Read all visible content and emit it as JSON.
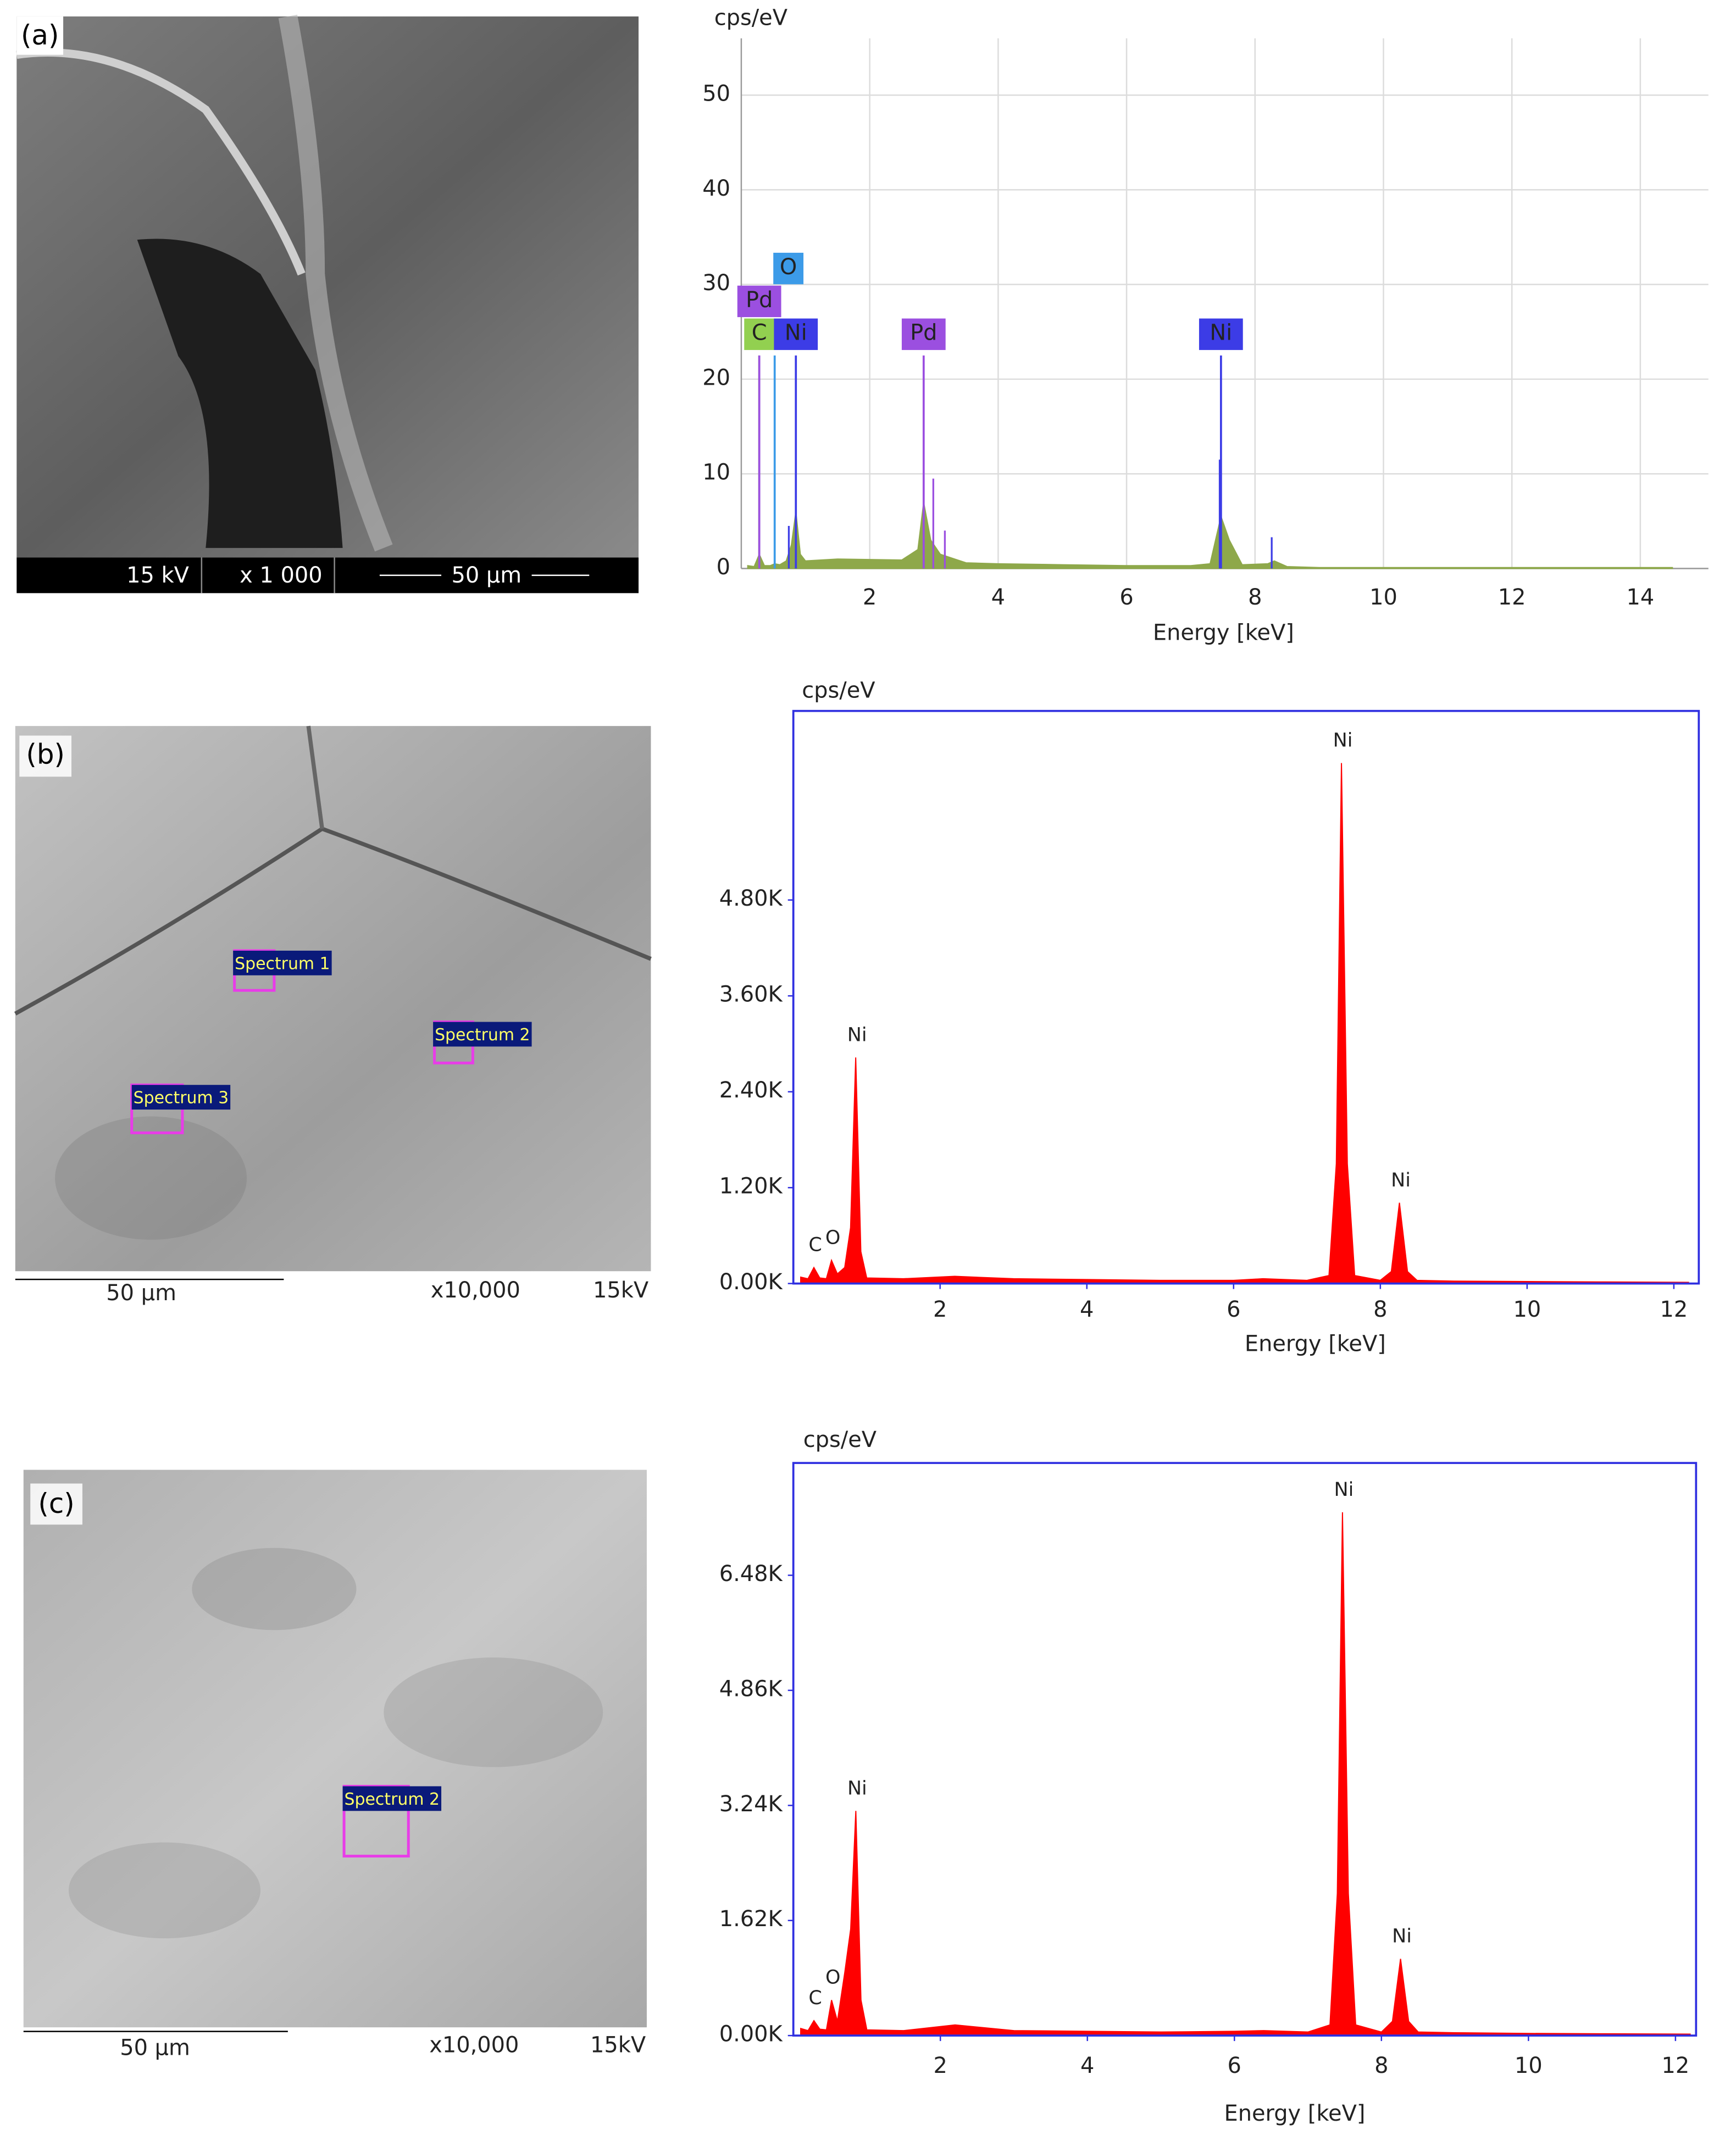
{
  "chart_data": [
    {
      "type": "area",
      "y_label": "cps/eV",
      "x_label": "Energy [keV]",
      "color": "#8ea84a",
      "grid": true,
      "frame_color": "#9a9a9a",
      "xlim": [
        0,
        15.06
      ],
      "xticks": [
        2,
        4,
        6,
        8,
        10,
        12,
        14
      ],
      "ylim": [
        0,
        56
      ],
      "yticks": [
        0,
        10,
        20,
        30,
        40,
        50
      ],
      "x": [
        0.1,
        0.2,
        0.28,
        0.36,
        0.45,
        0.52,
        0.6,
        0.7,
        0.78,
        0.85,
        0.92,
        1.0,
        1.5,
        2.5,
        2.75,
        2.84,
        2.95,
        3.1,
        3.5,
        4,
        5,
        6,
        7,
        7.3,
        7.47,
        7.6,
        7.8,
        8.2,
        8.3,
        8.5,
        9,
        10,
        12,
        14.5
      ],
      "values": [
        0.3,
        0.2,
        1.5,
        0.3,
        0.3,
        0.5,
        0.4,
        0.8,
        2.5,
        6,
        1.5,
        0.8,
        1,
        0.9,
        2,
        7,
        3,
        1.5,
        0.6,
        0.5,
        0.4,
        0.3,
        0.3,
        0.5,
        5.5,
        3,
        0.4,
        0.5,
        0.8,
        0.2,
        0.1,
        0.1,
        0.1,
        0.1
      ],
      "markers": [
        {
          "label": "C",
          "x": 0.28,
          "y": 22.5,
          "color": "#92d050"
        },
        {
          "label": "Pd",
          "x": 0.28,
          "y": 22.5,
          "color": "#9b4fe0"
        },
        {
          "label": "O",
          "x": 0.52,
          "y": 22.5,
          "color": "#3c9be8"
        },
        {
          "label": "Ni",
          "x": 0.85,
          "y": 22.5,
          "color": "#3c3ce6"
        },
        {
          "label": "Pd",
          "x": 2.84,
          "y": 22.5,
          "color": "#9b4fe0"
        },
        {
          "label": "Ni",
          "x": 7.47,
          "y": 22.5,
          "color": "#3c3ce6"
        }
      ],
      "lines": [
        {
          "x": 2.99,
          "y": 9.5,
          "color": "#9b4fe0"
        },
        {
          "x": 3.17,
          "y": 4,
          "color": "#9b4fe0"
        },
        {
          "x": 0.74,
          "y": 4.5,
          "color": "#3c3ce6"
        },
        {
          "x": 7.45,
          "y": 11.5,
          "color": "#3c3ce6"
        },
        {
          "x": 8.26,
          "y": 3.3,
          "color": "#3c3ce6"
        }
      ]
    },
    {
      "type": "area",
      "y_label": "cps/eV",
      "x_label": "Energy [keV]",
      "color": "#ff0000",
      "grid": false,
      "frame_color": "#2f2fe0",
      "xlim": [
        0,
        12.34
      ],
      "xticks": [
        2,
        4,
        6,
        8,
        10,
        12
      ],
      "ylim": [
        0,
        7166
      ],
      "yticks": [
        {
          "value": 0,
          "label": "0.00K"
        },
        {
          "value": 1200,
          "label": "1.20K"
        },
        {
          "value": 2400,
          "label": "2.40K"
        },
        {
          "value": 3600,
          "label": "3.60K"
        },
        {
          "value": 4800,
          "label": "4.80K"
        }
      ],
      "x": [
        0.1,
        0.2,
        0.28,
        0.36,
        0.45,
        0.52,
        0.6,
        0.7,
        0.78,
        0.85,
        0.92,
        1.0,
        1.5,
        2.2,
        3,
        4,
        5,
        6,
        6.4,
        7,
        7.3,
        7.4,
        7.47,
        7.55,
        7.65,
        8.0,
        8.15,
        8.26,
        8.37,
        8.5,
        9,
        10,
        11,
        12.2
      ],
      "values": [
        80,
        60,
        200,
        70,
        60,
        290,
        120,
        200,
        700,
        2829,
        400,
        70,
        60,
        90,
        60,
        50,
        40,
        40,
        60,
        40,
        100,
        1500,
        6514,
        1500,
        100,
        40,
        150,
        1011,
        150,
        40,
        30,
        25,
        20,
        15
      ],
      "peak_labels": [
        {
          "label": "C",
          "x": 0.28,
          "y": 200
        },
        {
          "label": "O",
          "x": 0.52,
          "y": 290
        },
        {
          "label": "Ni",
          "x": 0.85,
          "y": 2829
        },
        {
          "label": "Ni",
          "x": 7.47,
          "y": 6514
        },
        {
          "label": "Ni",
          "x": 8.26,
          "y": 1011
        }
      ]
    },
    {
      "type": "area",
      "y_label": "cps/eV",
      "x_label": "Energy [keV]",
      "color": "#ff0000",
      "grid": false,
      "frame_color": "#2f2fe0",
      "xlim": [
        0,
        12.28
      ],
      "xticks": [
        2,
        4,
        6,
        8,
        10,
        12
      ],
      "ylim": [
        0,
        8061
      ],
      "yticks": [
        {
          "value": 0,
          "label": "0.00K"
        },
        {
          "value": 1620,
          "label": "1.62K"
        },
        {
          "value": 3240,
          "label": "3.24K"
        },
        {
          "value": 4860,
          "label": "4.86K"
        },
        {
          "value": 6480,
          "label": "6.48K"
        }
      ],
      "x": [
        0.1,
        0.2,
        0.28,
        0.36,
        0.45,
        0.52,
        0.6,
        0.7,
        0.78,
        0.85,
        0.92,
        1.0,
        1.5,
        2.2,
        3,
        4,
        5,
        6,
        6.4,
        7,
        7.3,
        7.4,
        7.47,
        7.55,
        7.65,
        8.0,
        8.15,
        8.26,
        8.37,
        8.5,
        9,
        10,
        11,
        12.2
      ],
      "values": [
        100,
        70,
        210,
        90,
        80,
        500,
        200,
        890,
        1500,
        3163,
        500,
        80,
        70,
        150,
        70,
        60,
        50,
        60,
        70,
        50,
        150,
        2000,
        7367,
        2000,
        150,
        50,
        200,
        1080,
        200,
        50,
        40,
        30,
        25,
        20
      ],
      "peak_labels": [
        {
          "label": "C",
          "x": 0.28,
          "y": 210
        },
        {
          "label": "O",
          "x": 0.52,
          "y": 500
        },
        {
          "label": "Ni",
          "x": 0.85,
          "y": 3163
        },
        {
          "label": "Ni",
          "x": 7.47,
          "y": 7367
        },
        {
          "label": "Ni",
          "x": 8.26,
          "y": 1080
        }
      ]
    }
  ],
  "images": [
    {
      "label": "(a)",
      "footer": [
        "15 kV",
        "x 1 000",
        "50 µm"
      ]
    },
    {
      "label": "(b)",
      "regions": [
        "Spectrum 1",
        "Spectrum 2",
        "Spectrum 3"
      ],
      "footer": [
        "50 µm",
        "x10,000",
        "15kV"
      ]
    },
    {
      "label": "(c)",
      "regions": [
        "Spectrum 2"
      ],
      "footer": [
        "50 µm",
        "x10,000",
        "15kV"
      ]
    }
  ]
}
